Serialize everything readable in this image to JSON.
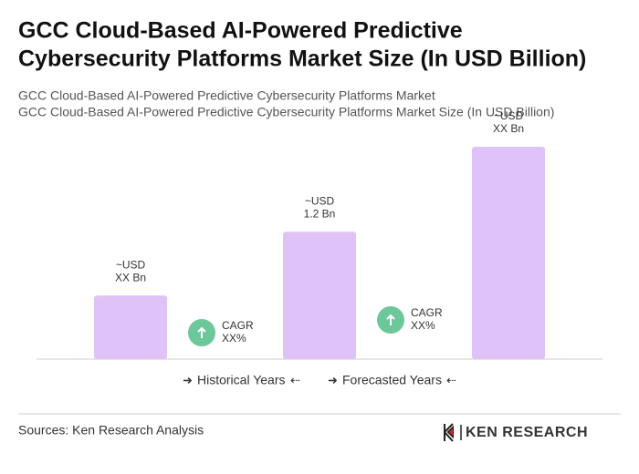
{
  "chart_data": {
    "type": "bar",
    "title": [
      "GCC Cloud-Based AI-Powered Predictive",
      "Cybersecurity Platforms Market Size (In USD Billion)"
    ],
    "subtitle": [
      "GCC Cloud-Based AI-Powered Predictive Cybersecurity Platforms Market",
      "GCC Cloud-Based AI-Powered Predictive Cybersecurity Platforms Market Size (In USD Billion)"
    ],
    "categories": [
      null,
      null,
      null
    ],
    "values": [
      0.6,
      1.2,
      2
    ],
    "value_labels": [
      [
        "~USD",
        "XX Bn"
      ],
      [
        "~USD",
        "1.2 Bn"
      ],
      [
        "~USD",
        "XX Bn"
      ]
    ],
    "color": "#dfc3f8",
    "ylim": [
      0,
      2
    ],
    "cagr_labels": [
      [
        "CAGR",
        "XX%"
      ],
      [
        "CAGR",
        "XX%"
      ]
    ],
    "cagr_color": "#6cc79a",
    "legend": [
      "Historical Years",
      "Forecasted Years"
    ],
    "source": "Sources: Ken Research Analysis",
    "logo": "KEN RESEARCH"
  }
}
